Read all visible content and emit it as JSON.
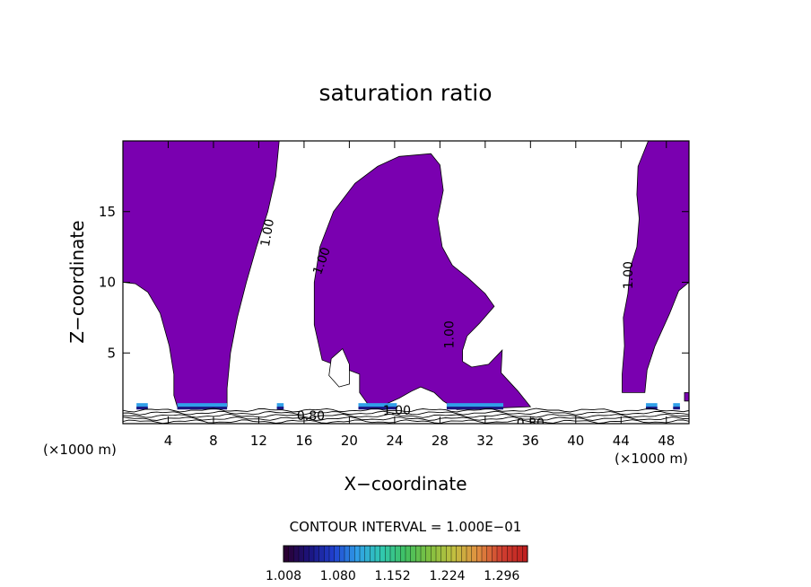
{
  "chart_data": {
    "type": "contour",
    "title": "saturation ratio",
    "xlabel": "X−coordinate",
    "ylabel": "Z−coordinate",
    "x_unit": "(×1000 m)",
    "x_unit_right": "(×1000 m)",
    "xlim": [
      0,
      50
    ],
    "ylim": [
      0,
      20
    ],
    "x_ticks": [
      4,
      8,
      12,
      16,
      20,
      24,
      28,
      32,
      36,
      40,
      44,
      48
    ],
    "y_ticks": [
      5,
      10,
      15
    ],
    "contour_interval_text": "CONTOUR INTERVAL = 1.000E−01",
    "contour_labels": [
      {
        "text": "1.00",
        "x": 12.8,
        "z": 13.5,
        "angle": -80
      },
      {
        "text": "1.00",
        "x": 17.6,
        "z": 11.5,
        "angle": -70
      },
      {
        "text": "1.00",
        "x": 28.9,
        "z": 6.3,
        "angle": -90
      },
      {
        "text": "1.00",
        "x": 44.7,
        "z": 10.5,
        "angle": -90
      },
      {
        "text": "1.00",
        "x": 24.2,
        "z": 0.9,
        "angle": 0
      },
      {
        "text": "0.80",
        "x": 16.6,
        "z": 0.5,
        "angle": 0
      },
      {
        "text": "0.80",
        "x": 36.0,
        "z": 0.0,
        "angle": 0
      }
    ],
    "colorbar": {
      "tick_labels": [
        "1.008",
        "1.080",
        "1.152",
        "1.224",
        "1.296"
      ],
      "range": [
        1.008,
        1.33
      ],
      "colors": [
        "#2a0033",
        "#1b1480",
        "#2040d0",
        "#30a0e8",
        "#30c8b0",
        "#40c060",
        "#80c040",
        "#c0c040",
        "#e09040",
        "#d04030",
        "#c02020"
      ]
    },
    "fill_color": "#7a00b0",
    "regions": [
      {
        "name": "left-plume",
        "polygon": [
          [
            0,
            10
          ],
          [
            0,
            20
          ],
          [
            13.8,
            20
          ],
          [
            13.5,
            17.5
          ],
          [
            12.8,
            15
          ],
          [
            11.8,
            12.5
          ],
          [
            10.9,
            10
          ],
          [
            10.1,
            7.5
          ],
          [
            9.5,
            5
          ],
          [
            9.2,
            2.5
          ],
          [
            9.2,
            1.2
          ],
          [
            4.8,
            1.2
          ],
          [
            4.5,
            2
          ],
          [
            4.5,
            3.5
          ],
          [
            4.1,
            5.5
          ],
          [
            3.3,
            7.8
          ],
          [
            2.2,
            9.3
          ],
          [
            1.1,
            9.9
          ]
        ]
      },
      {
        "name": "central-plume",
        "polygon": [
          [
            21.8,
            1.2
          ],
          [
            20.9,
            2.2
          ],
          [
            20.9,
            3.5
          ],
          [
            17.6,
            4.5
          ],
          [
            16.9,
            7
          ],
          [
            16.9,
            10
          ],
          [
            17.4,
            12.5
          ],
          [
            18.6,
            15
          ],
          [
            20.5,
            17
          ],
          [
            22.5,
            18.2
          ],
          [
            24.4,
            18.9
          ],
          [
            27.2,
            19.1
          ],
          [
            28.0,
            18.3
          ],
          [
            28.3,
            16.5
          ],
          [
            27.8,
            14.5
          ],
          [
            28.2,
            12.5
          ],
          [
            29.1,
            11.2
          ],
          [
            30.5,
            10.3
          ],
          [
            32.0,
            9.2
          ],
          [
            32.8,
            8.3
          ],
          [
            31.5,
            7.1
          ],
          [
            30.4,
            6.2
          ],
          [
            30.0,
            5.2
          ],
          [
            30.0,
            4.4
          ],
          [
            30.8,
            4.0
          ],
          [
            32.3,
            4.2
          ],
          [
            33.5,
            5.2
          ],
          [
            33.4,
            3.6
          ],
          [
            34.9,
            2.3
          ],
          [
            36.0,
            1.2
          ],
          [
            29.5,
            1.0
          ],
          [
            28.3,
            1.6
          ],
          [
            27.5,
            2.2
          ],
          [
            26.3,
            2.6
          ],
          [
            25.5,
            2.3
          ],
          [
            24.4,
            1.8
          ],
          [
            23.3,
            1.4
          ]
        ]
      },
      {
        "name": "right-plume",
        "polygon": [
          [
            50,
            10
          ],
          [
            50,
            20
          ],
          [
            46.4,
            20
          ],
          [
            45.5,
            18.2
          ],
          [
            45.4,
            16.2
          ],
          [
            45.6,
            14.5
          ],
          [
            45.4,
            12.5
          ],
          [
            44.8,
            11.0
          ],
          [
            44.6,
            9.2
          ],
          [
            44.2,
            7.5
          ],
          [
            44.3,
            5.5
          ],
          [
            44.1,
            3.5
          ],
          [
            44.1,
            2.2
          ],
          [
            46.1,
            2.2
          ],
          [
            46.3,
            3.8
          ],
          [
            47.0,
            5.5
          ],
          [
            48.3,
            7.8
          ],
          [
            49.1,
            9.4
          ]
        ]
      },
      {
        "name": "small-right-band",
        "polygon": [
          [
            49.6,
            2.2
          ],
          [
            50,
            2.2
          ],
          [
            50,
            1.6
          ],
          [
            49.6,
            1.6
          ]
        ]
      }
    ],
    "holes": [
      {
        "name": "central-hole",
        "polygon": [
          [
            19.4,
            5.3
          ],
          [
            18.4,
            4.6
          ],
          [
            18.2,
            3.4
          ],
          [
            19.1,
            2.6
          ],
          [
            20.0,
            2.8
          ],
          [
            20.0,
            4.2
          ]
        ]
      }
    ],
    "surface_contours_z": [
      0.15,
      0.35,
      0.55,
      0.75,
      0.95
    ]
  }
}
